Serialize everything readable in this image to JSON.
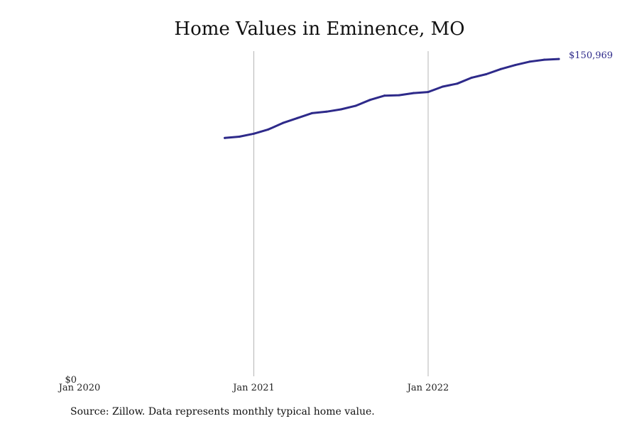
{
  "title": "Home Values in Eminence, MO",
  "source": "Source: Zillow. Data represents monthly typical home value.",
  "colors": {
    "line": "#2e2a8a",
    "grid": "#b5b5b5"
  },
  "chart_data": {
    "type": "line",
    "title": "Home Values in Eminence, MO",
    "xlabel": "",
    "ylabel": "",
    "x_ticks": [
      "Jan 2020",
      "Jan 2021",
      "Jan 2022"
    ],
    "x_range": [
      "2020-01",
      "2022-12"
    ],
    "y_ticks": [
      "$0"
    ],
    "ylim": [
      0,
      152000
    ],
    "grid": "vertical lines at year ticks",
    "end_label": "$150,969",
    "series": [
      {
        "x": [
          "2020-11",
          "2020-12",
          "2021-01",
          "2021-02",
          "2021-03",
          "2021-04",
          "2021-05",
          "2021-06",
          "2021-07",
          "2021-08",
          "2021-09",
          "2021-10",
          "2021-11",
          "2021-12",
          "2022-01",
          "2022-02",
          "2022-03",
          "2022-04",
          "2022-05",
          "2022-06",
          "2022-07",
          "2022-08",
          "2022-09",
          "2022-10"
        ],
        "values": [
          111400,
          112000,
          113400,
          115400,
          118400,
          120700,
          123000,
          123700,
          124800,
          126400,
          129200,
          131200,
          131400,
          132400,
          132900,
          135400,
          136800,
          139600,
          141200,
          143600,
          145500,
          147100,
          148000,
          148300
        ]
      }
    ]
  }
}
